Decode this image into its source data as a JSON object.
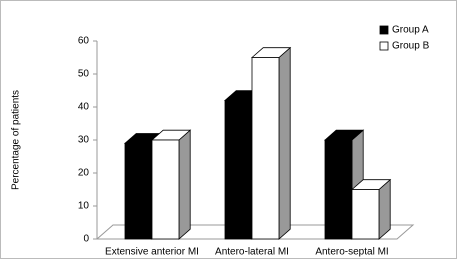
{
  "chart_data": {
    "type": "bar3d",
    "y_label": "Percentage of patients",
    "categories": [
      "Extensive anterior MI",
      "Antero-lateral MI",
      "Antero-septal MI"
    ],
    "series": [
      {
        "name": "Group A",
        "color": "#000000",
        "values": [
          29,
          42,
          30
        ]
      },
      {
        "name": "Group B",
        "color": "#ffffff",
        "values": [
          30,
          55,
          15
        ]
      }
    ],
    "ylim": [
      0,
      60
    ],
    "yticks": [
      0,
      10,
      20,
      30,
      40,
      50,
      60
    ],
    "legend": "top-right"
  }
}
